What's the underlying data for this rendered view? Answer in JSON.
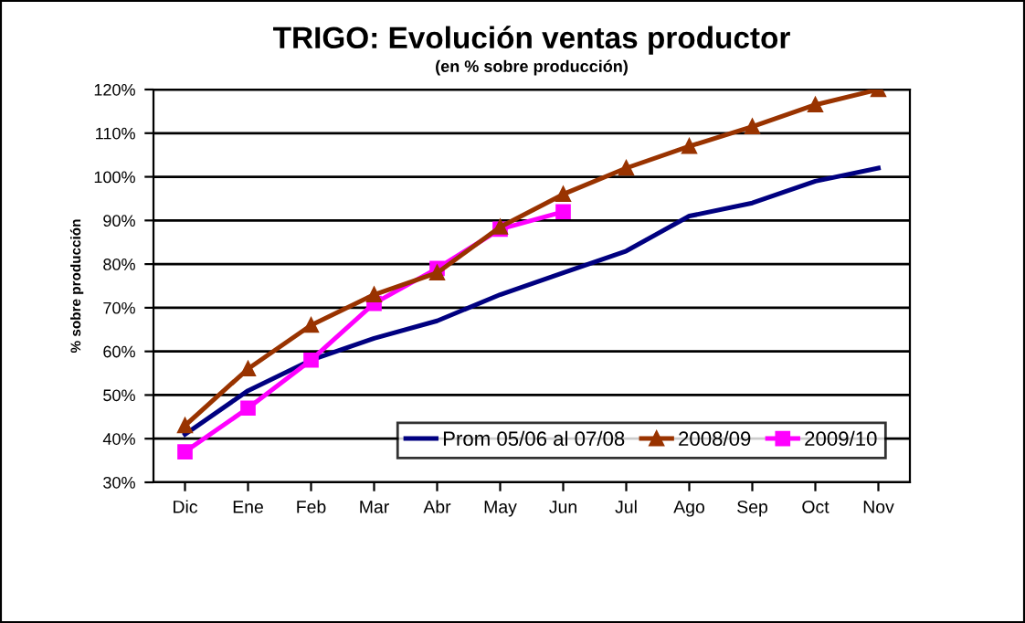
{
  "chart_data": {
    "type": "line",
    "title": "TRIGO: Evolución ventas productor",
    "subtitle": "(en % sobre producción)",
    "ylabel": "% sobre producción",
    "categories": [
      "Dic",
      "Ene",
      "Feb",
      "Mar",
      "Abr",
      "May",
      "Jun",
      "Jul",
      "Ago",
      "Sep",
      "Oct",
      "Nov"
    ],
    "series": [
      {
        "name": "Prom 05/06 al 07/08",
        "color": "#000080",
        "marker": "none",
        "values": [
          41,
          51,
          58,
          63,
          67,
          73,
          78,
          83,
          91,
          94,
          99,
          102
        ]
      },
      {
        "name": "2008/09",
        "color": "#993300",
        "marker": "triangle",
        "values": [
          43,
          56,
          66,
          73,
          78,
          88.5,
          96,
          102,
          107,
          111.5,
          116.5,
          120
        ]
      },
      {
        "name": "2009/10",
        "color": "#ff00ff",
        "marker": "square",
        "values": [
          37,
          47,
          58,
          71,
          79,
          88,
          92,
          null,
          null,
          null,
          null,
          null
        ]
      }
    ],
    "ylim": [
      30,
      120
    ],
    "yticks": [
      {
        "value": 30,
        "label": "30%"
      },
      {
        "value": 40,
        "label": "40%"
      },
      {
        "value": 50,
        "label": "50%"
      },
      {
        "value": 60,
        "label": "60%"
      },
      {
        "value": 70,
        "label": "70%"
      },
      {
        "value": 80,
        "label": "80%"
      },
      {
        "value": 90,
        "label": "90%"
      },
      {
        "value": 100,
        "label": "100%"
      },
      {
        "value": 110,
        "label": "110%"
      },
      {
        "value": 120,
        "label": "120%"
      }
    ],
    "grid": "y",
    "legend": "bottom right"
  }
}
